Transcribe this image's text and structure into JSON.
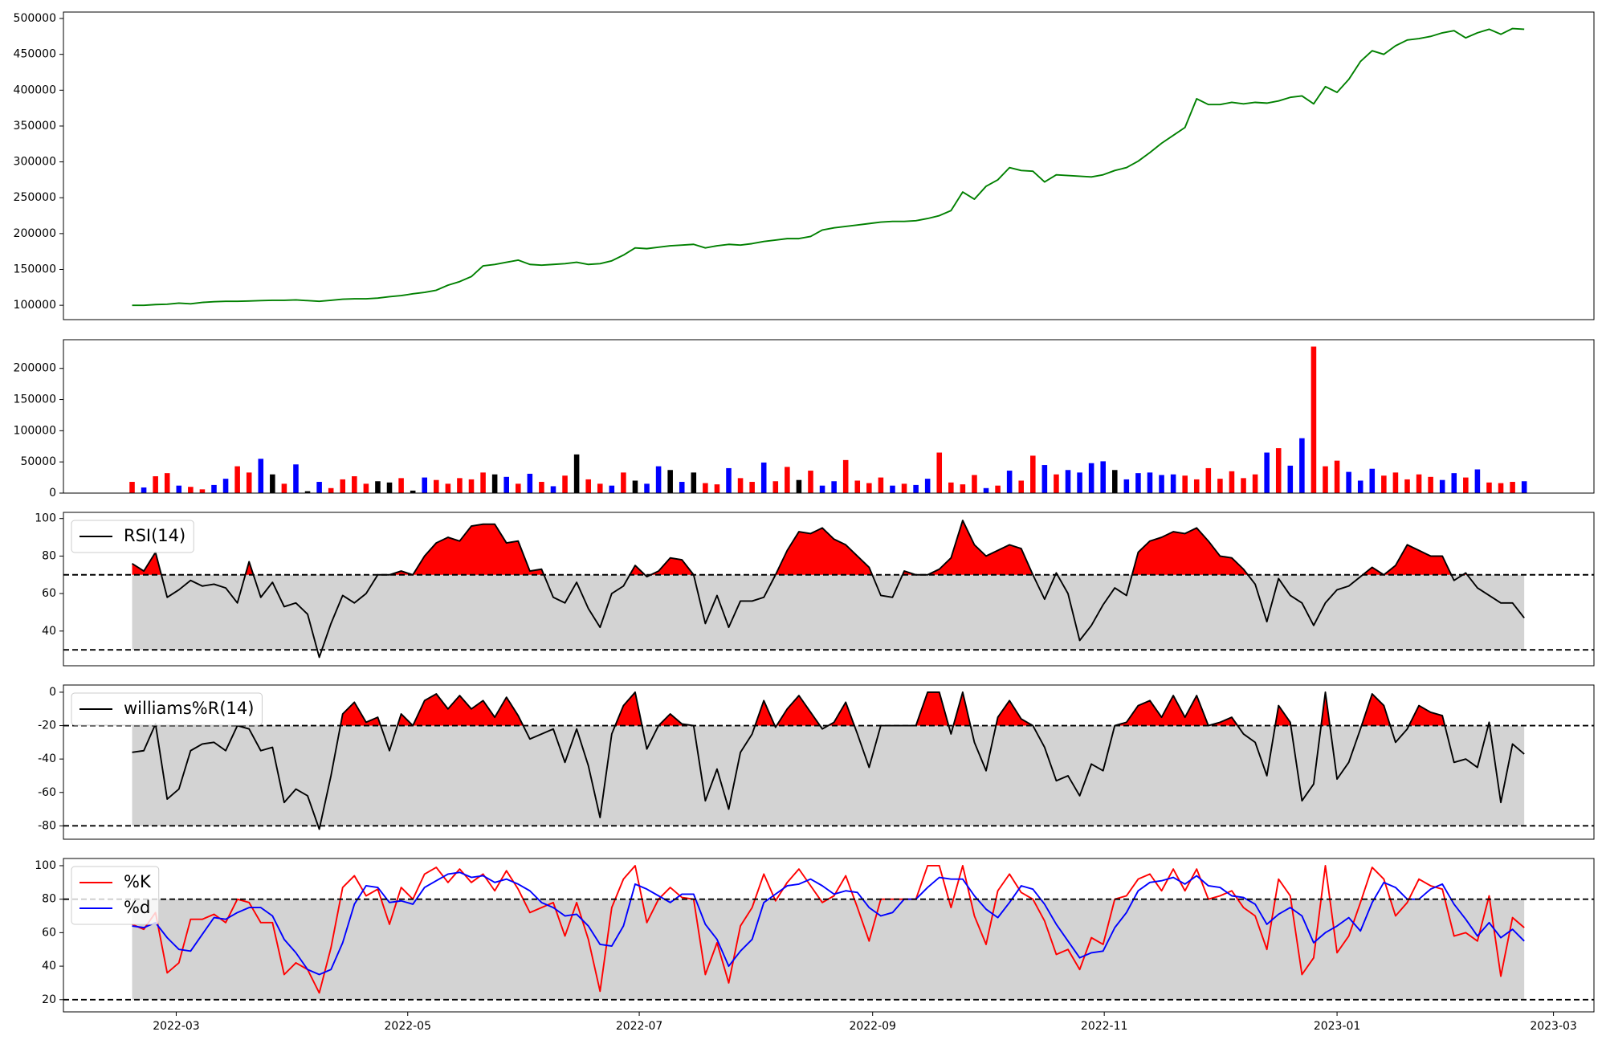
{
  "chart_data": [
    {
      "type": "line",
      "color": "#008000",
      "values": [
        100000,
        100000,
        101000,
        101500,
        103000,
        102000,
        104000,
        105000,
        105500,
        105500,
        106000,
        106500,
        107000,
        107000,
        107500,
        106500,
        105500,
        107000,
        108500,
        109000,
        109000,
        110000,
        112000,
        113500,
        116000,
        118000,
        121000,
        128000,
        133000,
        140000,
        155000,
        157000,
        160000,
        163000,
        157000,
        156000,
        157000,
        158000,
        160000,
        157000,
        158000,
        162000,
        170000,
        180000,
        179000,
        181000,
        183000,
        184000,
        185000,
        180000,
        183000,
        185000,
        184000,
        186000,
        189000,
        191000,
        193000,
        193000,
        196000,
        205000,
        208000,
        210000,
        212000,
        214000,
        216000,
        217000,
        217000,
        218000,
        221000,
        225000,
        232000,
        258000,
        248000,
        266000,
        275000,
        292000,
        288000,
        287000,
        272000,
        282000,
        281000,
        280000,
        279000,
        282000,
        288000,
        292000,
        301000,
        313000,
        326000,
        337000,
        348000,
        388000,
        380000,
        380000,
        383000,
        381000,
        383000,
        382000,
        385000,
        390000,
        392000,
        381000,
        405000,
        397000,
        415000,
        440000,
        455000,
        450000,
        462000,
        470000,
        472000,
        475000,
        480000,
        483000,
        473000,
        480000,
        485000,
        478000,
        486000,
        485000
      ],
      "xlim": [
        -5.87,
        124.96
      ],
      "ylim": [
        80000,
        509000
      ],
      "yticks": [
        100000,
        150000,
        200000,
        250000,
        300000,
        350000,
        400000,
        450000,
        500000
      ]
    },
    {
      "type": "bar",
      "values": [
        18000,
        9000,
        27000,
        32000,
        12000,
        10000,
        6000,
        13000,
        23000,
        43000,
        33000,
        55000,
        30000,
        15000,
        46000,
        3000,
        18000,
        8000,
        22000,
        27000,
        15000,
        19000,
        17000,
        24000,
        4000,
        25000,
        21000,
        15000,
        24000,
        22000,
        33000,
        30000,
        26000,
        15000,
        31000,
        18000,
        11000,
        28000,
        62000,
        22000,
        15000,
        12000,
        33000,
        20000,
        15000,
        43000,
        37000,
        18000,
        33000,
        16000,
        14000,
        40000,
        24000,
        18000,
        49000,
        19000,
        42000,
        21000,
        36000,
        12000,
        19000,
        53000,
        20000,
        16000,
        25000,
        12000,
        15000,
        13000,
        23000,
        65000,
        17000,
        14000,
        29000,
        8000,
        12000,
        36000,
        20000,
        60000,
        45000,
        30000,
        37000,
        33000,
        48000,
        51000,
        37000,
        22000,
        32000,
        33000,
        29000,
        30000,
        28000,
        22000,
        40000,
        23000,
        35000,
        24000,
        30000,
        65000,
        72000,
        44000,
        88000,
        235000,
        43000,
        52000,
        34000,
        20000,
        39000,
        28000,
        33000,
        22000,
        30000,
        26000,
        21000,
        32000,
        25000,
        38000,
        17000,
        16000,
        18000,
        19000
      ],
      "colors": [
        "red",
        "blue",
        "red",
        "red",
        "blue",
        "red",
        "red",
        "blue",
        "blue",
        "red",
        "red",
        "blue",
        "black",
        "red",
        "blue",
        "black",
        "blue",
        "red",
        "red",
        "red",
        "red",
        "black",
        "black",
        "red",
        "black",
        "blue",
        "red",
        "red",
        "red",
        "red",
        "red",
        "black",
        "blue",
        "red",
        "blue",
        "red",
        "blue",
        "red",
        "black",
        "red",
        "red",
        "blue",
        "red",
        "black",
        "blue",
        "blue",
        "black",
        "blue",
        "black",
        "red",
        "red",
        "blue",
        "red",
        "red",
        "blue",
        "red",
        "red",
        "black",
        "red",
        "blue",
        "blue",
        "red",
        "red",
        "red",
        "red",
        "blue",
        "red",
        "blue",
        "blue",
        "red",
        "red",
        "red",
        "red",
        "blue",
        "red",
        "blue",
        "red",
        "red",
        "blue",
        "red",
        "blue",
        "blue",
        "blue",
        "blue",
        "black",
        "blue",
        "blue",
        "blue",
        "blue",
        "blue",
        "red",
        "red",
        "red",
        "red",
        "red",
        "red",
        "red",
        "blue",
        "red",
        "blue",
        "blue",
        "red",
        "red",
        "red",
        "blue",
        "blue",
        "blue",
        "red",
        "red",
        "red",
        "red",
        "red",
        "blue",
        "blue",
        "red",
        "blue",
        "red",
        "red",
        "red",
        "blue"
      ],
      "xlim": [
        -5.87,
        124.96
      ],
      "ylim": [
        0,
        246000
      ],
      "yticks": [
        0,
        50000,
        100000,
        150000,
        200000
      ]
    },
    {
      "type": "oscillator",
      "series": [
        {
          "name": "RSI(14)",
          "color": "black",
          "values": [
            76,
            72,
            82,
            58,
            62,
            67,
            64,
            65,
            63,
            55,
            77,
            58,
            66,
            53,
            55,
            49,
            26,
            44,
            59,
            55,
            60,
            70,
            70,
            72,
            70,
            80,
            87,
            90,
            88,
            96,
            97,
            97,
            87,
            88,
            72,
            73,
            58,
            55,
            66,
            52,
            42,
            60,
            64,
            75,
            69,
            72,
            79,
            78,
            70,
            44,
            59,
            42,
            56,
            56,
            58,
            70,
            83,
            93,
            92,
            95,
            89,
            86,
            80,
            74,
            59,
            58,
            72,
            70,
            70,
            73,
            79,
            99,
            86,
            80,
            83,
            86,
            84,
            70,
            57,
            71,
            60,
            35,
            43,
            54,
            63,
            59,
            82,
            88,
            90,
            93,
            92,
            95,
            88,
            80,
            79,
            73,
            65,
            45,
            68,
            59,
            55,
            43,
            55,
            62,
            64,
            69,
            74,
            70,
            75,
            86,
            83,
            80,
            80,
            67,
            71,
            63,
            59,
            55,
            55,
            47
          ]
        }
      ],
      "bands": [
        30,
        70
      ],
      "band_color": "lightgray",
      "fill_color": "red",
      "legend": "upper left",
      "xlim": [
        -5.87,
        124.96
      ],
      "ylim": [
        21.5,
        103.3
      ],
      "yticks": [
        40,
        60,
        80,
        100
      ]
    },
    {
      "type": "oscillator",
      "series": [
        {
          "name": "williams%R(14)",
          "color": "black",
          "values": [
            -36,
            -35,
            -19,
            -64,
            -58,
            -35,
            -31,
            -30,
            -35,
            -20,
            -22,
            -35,
            -33,
            -66,
            -58,
            -62,
            -82,
            -50,
            -13,
            -6,
            -18,
            -15,
            -35,
            -13,
            -20,
            -5,
            -1,
            -10,
            -2,
            -10,
            -5,
            -15,
            -3,
            -14,
            -28,
            -25,
            -22,
            -42,
            -22,
            -44,
            -75,
            -25,
            -8,
            0,
            -34,
            -20,
            -13,
            -19,
            -20,
            -65,
            -46,
            -70,
            -36,
            -25,
            -5,
            -21,
            -10,
            -2,
            -12,
            -22,
            -18,
            -6,
            -25,
            -45,
            -20,
            -20,
            -20,
            -20,
            0,
            0,
            -25,
            0,
            -30,
            -47,
            -15,
            -5,
            -16,
            -20,
            -33,
            -53,
            -50,
            -62,
            -43,
            -47,
            -20,
            -18,
            -8,
            -5,
            -15,
            -2,
            -15,
            -2,
            -20,
            -18,
            -15,
            -25,
            -30,
            -50,
            -8,
            -18,
            -65,
            -55,
            0,
            -52,
            -42,
            -22,
            -1,
            -8,
            -30,
            -22,
            -8,
            -12,
            -14,
            -42,
            -40,
            -45,
            -18,
            -66,
            -31,
            -37
          ]
        }
      ],
      "bands": [
        -80,
        -20
      ],
      "band_color": "lightgray",
      "fill_color": "red",
      "legend": "upper left",
      "xlim": [
        -5.87,
        124.96
      ],
      "ylim": [
        -88,
        4.3
      ],
      "yticks": [
        0,
        -20,
        -40,
        -60,
        -80
      ]
    },
    {
      "type": "oscillator",
      "series": [
        {
          "name": "%K",
          "color": "red",
          "values": [
            65,
            62,
            72,
            36,
            42,
            68,
            68,
            71,
            66,
            80,
            78,
            66,
            66,
            35,
            42,
            38,
            24,
            51,
            87,
            94,
            82,
            86,
            65,
            87,
            80,
            95,
            99,
            90,
            98,
            90,
            95,
            85,
            97,
            86,
            72,
            75,
            78,
            58,
            78,
            56,
            25,
            75,
            92,
            100,
            66,
            80,
            87,
            81,
            80,
            35,
            54,
            30,
            64,
            75,
            95,
            79,
            90,
            98,
            88,
            78,
            82,
            94,
            75,
            55,
            80,
            80,
            80,
            80,
            100,
            100,
            75,
            100,
            70,
            53,
            85,
            95,
            84,
            80,
            67,
            47,
            50,
            38,
            57,
            53,
            80,
            82,
            92,
            95,
            85,
            98,
            85,
            98,
            80,
            82,
            85,
            75,
            70,
            50,
            92,
            82,
            35,
            45,
            100,
            48,
            58,
            78,
            99,
            92,
            70,
            78,
            92,
            88,
            86,
            58,
            60,
            55,
            82,
            34,
            69,
            63
          ]
        },
        {
          "name": "%d",
          "color": "blue",
          "values": [
            64,
            63,
            66,
            57,
            50,
            49,
            59,
            69,
            68,
            72,
            75,
            75,
            70,
            56,
            48,
            38,
            35,
            38,
            54,
            77,
            88,
            87,
            78,
            79,
            77,
            87,
            91,
            95,
            96,
            93,
            94,
            90,
            92,
            89,
            85,
            78,
            75,
            70,
            71,
            64,
            53,
            52,
            64,
            89,
            86,
            82,
            78,
            83,
            83,
            65,
            56,
            40,
            49,
            56,
            78,
            83,
            88,
            89,
            92,
            88,
            83,
            85,
            84,
            75,
            70,
            72,
            80,
            80,
            87,
            93,
            92,
            92,
            82,
            74,
            69,
            78,
            88,
            86,
            77,
            65,
            55,
            45,
            48,
            49,
            63,
            72,
            85,
            90,
            91,
            93,
            89,
            94,
            88,
            87,
            82,
            81,
            77,
            65,
            71,
            75,
            70,
            54,
            60,
            64,
            69,
            61,
            78,
            90,
            87,
            80,
            80,
            86,
            89,
            77,
            68,
            58,
            66,
            57,
            62,
            55
          ]
        }
      ],
      "bands": [
        20,
        80
      ],
      "band_color": "lightgray",
      "legend": "upper left",
      "xlim": [
        -5.87,
        124.96
      ],
      "ylim": [
        12.7,
        104.3
      ],
      "yticks": [
        20,
        40,
        60,
        80,
        100
      ],
      "xticks": [
        {
          "value": 3.77,
          "label": "2022-03"
        },
        {
          "value": 23.56,
          "label": "2022-05"
        },
        {
          "value": 43.35,
          "label": "2022-07"
        },
        {
          "value": 63.3,
          "label": "2022-09"
        },
        {
          "value": 83.1,
          "label": "2022-11"
        },
        {
          "value": 103.0,
          "label": "2023-01"
        },
        {
          "value": 121.5,
          "label": "2023-03"
        }
      ]
    }
  ]
}
